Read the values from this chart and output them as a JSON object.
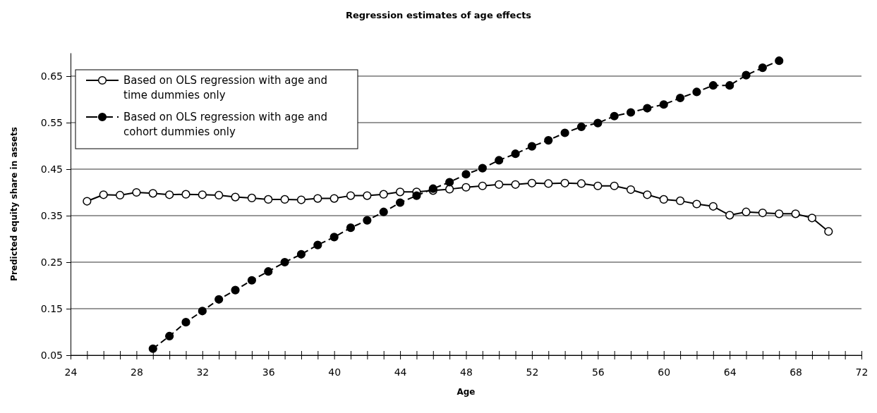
{
  "chart_data": {
    "type": "line",
    "title": "Regression estimates of age effects",
    "xlabel": "Age",
    "ylabel": "Predicted equity share in assets",
    "xlim": [
      24,
      72
    ],
    "xticks": [
      24,
      {
        "value": 25,
        "label": null
      },
      {
        "value": 26,
        "label": null
      },
      {
        "value": 27,
        "label": null
      },
      28,
      {
        "value": 29,
        "label": null
      },
      {
        "value": 30,
        "label": null
      },
      {
        "value": 31,
        "label": null
      },
      32,
      {
        "value": 33,
        "label": null
      },
      {
        "value": 34,
        "label": null
      },
      {
        "value": 35,
        "label": null
      },
      36,
      {
        "value": 37,
        "label": null
      },
      {
        "value": 38,
        "label": null
      },
      {
        "value": 39,
        "label": null
      },
      40,
      {
        "value": 41,
        "label": null
      },
      {
        "value": 42,
        "label": null
      },
      {
        "value": 43,
        "label": null
      },
      44,
      {
        "value": 45,
        "label": null
      },
      {
        "value": 46,
        "label": null
      },
      {
        "value": 47,
        "label": null
      },
      48,
      {
        "value": 49,
        "label": null
      },
      {
        "value": 50,
        "label": null
      },
      {
        "value": 51,
        "label": null
      },
      52,
      {
        "value": 53,
        "label": null
      },
      {
        "value": 54,
        "label": null
      },
      {
        "value": 55,
        "label": null
      },
      56,
      {
        "value": 57,
        "label": null
      },
      {
        "value": 58,
        "label": null
      },
      {
        "value": 59,
        "label": null
      },
      60,
      {
        "value": 61,
        "label": null
      },
      {
        "value": 62,
        "label": null
      },
      {
        "value": 63,
        "label": null
      },
      64,
      {
        "value": 65,
        "label": null
      },
      {
        "value": 66,
        "label": null
      },
      {
        "value": 67,
        "label": null
      },
      68,
      {
        "value": 69,
        "label": null
      },
      {
        "value": 70,
        "label": null
      },
      {
        "value": 71,
        "label": null
      },
      72
    ],
    "ylim": [
      0.05,
      0.7
    ],
    "yticks": [
      0.05,
      0.15,
      0.25,
      0.35,
      0.45,
      0.55,
      0.65
    ],
    "grid": "y",
    "legend": "top left",
    "series": [
      {
        "name": "Based on OLS regression with age and time dummies only",
        "color": "#000000",
        "marker": "circle",
        "line_style": "solid",
        "x": [
          25,
          26,
          27,
          28,
          29,
          30,
          31,
          32,
          33,
          34,
          35,
          36,
          37,
          38,
          39,
          40,
          41,
          42,
          43,
          44,
          45,
          46,
          47,
          48,
          49,
          50,
          51,
          52,
          53,
          54,
          55,
          56,
          57,
          58,
          59,
          60,
          61,
          62,
          63,
          64,
          65,
          66,
          67,
          68,
          69,
          70
        ],
        "values": [
          0.381,
          0.395,
          0.394,
          0.4,
          0.398,
          0.395,
          0.396,
          0.395,
          0.394,
          0.39,
          0.388,
          0.385,
          0.385,
          0.384,
          0.387,
          0.387,
          0.393,
          0.393,
          0.396,
          0.401,
          0.401,
          0.404,
          0.407,
          0.411,
          0.414,
          0.417,
          0.417,
          0.42,
          0.419,
          0.42,
          0.419,
          0.414,
          0.414,
          0.406,
          0.395,
          0.385,
          0.382,
          0.375,
          0.37,
          0.351,
          0.358,
          0.356,
          0.354,
          0.354,
          0.345,
          0.316
        ]
      },
      {
        "name": "Based on OLS regression with age and cohort dummies only",
        "color": "#000000",
        "marker": "circle",
        "line_style": "dashed",
        "x": [
          29,
          30,
          31,
          32,
          33,
          34,
          35,
          36,
          37,
          38,
          39,
          40,
          41,
          42,
          43,
          44,
          45,
          46,
          47,
          48,
          49,
          50,
          51,
          52,
          53,
          54,
          55,
          56,
          57,
          58,
          59,
          60,
          61,
          62,
          63,
          64,
          65,
          66,
          67
        ],
        "values": [
          0.064,
          0.091,
          0.121,
          0.145,
          0.17,
          0.19,
          0.211,
          0.23,
          0.25,
          0.267,
          0.287,
          0.304,
          0.324,
          0.34,
          0.358,
          0.378,
          0.393,
          0.408,
          0.422,
          0.439,
          0.452,
          0.469,
          0.483,
          0.499,
          0.512,
          0.528,
          0.541,
          0.549,
          0.564,
          0.572,
          0.581,
          0.589,
          0.603,
          0.616,
          0.63,
          0.63,
          0.652,
          0.668,
          0.683
        ]
      }
    ]
  }
}
